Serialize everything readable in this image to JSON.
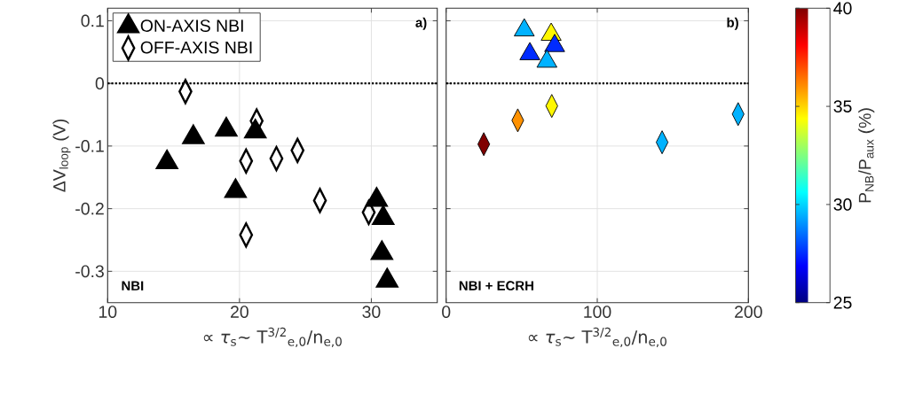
{
  "chart_data": [
    {
      "type": "scatter",
      "xlabel": "∝ *τ*$_{s}$∼ T$^{3/2}$$_{e,0}$/n$_{e,0}$",
      "ylabel": "ΔV$_{loop}$ (V)",
      "xlim": [
        10,
        35
      ],
      "ylim": [
        -0.35,
        0.12
      ],
      "xticks": [
        10,
        20,
        30
      ],
      "yticks": [
        -0.3,
        -0.2,
        -0.1,
        0,
        0.1
      ],
      "grid": true,
      "legend": "top left",
      "annotations": [
        "a)",
        "NBI"
      ],
      "ref_lines": [
        {
          "axis": "y",
          "value": 0,
          "color": "#000000",
          "line_style": "dotted"
        }
      ],
      "series": [
        {
          "name": "ON-AXIS NBI",
          "marker": "triangle",
          "color": "#000000",
          "x": [
            14.5,
            16.5,
            19.0,
            21.2,
            19.7,
            30.4,
            30.9,
            30.8,
            31.2
          ],
          "values": [
            -0.126,
            -0.086,
            -0.074,
            -0.077,
            -0.172,
            -0.186,
            -0.215,
            -0.271,
            -0.315
          ]
        },
        {
          "name": "OFF-AXIS NBI",
          "marker": "diamond",
          "color": "#000000",
          "x": [
            15.9,
            21.3,
            20.5,
            22.8,
            24.4,
            26.1,
            29.8,
            20.5
          ],
          "values": [
            -0.013,
            -0.06,
            -0.124,
            -0.12,
            -0.107,
            -0.187,
            -0.206,
            -0.242
          ]
        }
      ]
    },
    {
      "type": "scatter",
      "xlabel": "∝ *τ*$_{s}$∼ T$^{3/2}$$_{e,0}$/n$_{e,0}$",
      "xlim": [
        0,
        200
      ],
      "ylim": [
        -0.35,
        0.12
      ],
      "xticks": [
        0,
        100,
        200
      ],
      "yticks": [
        -0.3,
        -0.2,
        -0.1,
        0,
        0.1
      ],
      "tick_labels": "x",
      "grid": true,
      "annotations": [
        "b)",
        "NBI + ECRH"
      ],
      "ref_lines": [
        {
          "axis": "y",
          "value": 0,
          "color": "#000000",
          "line_style": "dotted"
        }
      ],
      "clim": [
        25,
        40
      ],
      "cticks": [
        25,
        30,
        35,
        40
      ],
      "clabel": "P$_{NB}$/P$_{aux}$ (%)",
      "series": [
        {
          "marker": "triangle",
          "x": [
            51.7,
            69.5,
            71.8,
            55.4,
            66.7
          ],
          "values": [
            0.085,
            0.078,
            0.06,
            0.047,
            0.035
          ],
          "cvalues": [
            29.5,
            34.5,
            27.5,
            27.5,
            29.5
          ],
          "colors": [
            "#00B3FF",
            "#FFF700",
            "#002BFF",
            "#002BFF",
            "#00B3FF"
          ]
        },
        {
          "marker": "diamond",
          "x": [
            24.9,
            47.4,
            69.9,
            142.9,
            193.2
          ],
          "values": [
            -0.097,
            -0.059,
            -0.036,
            -0.094,
            -0.049
          ],
          "cvalues": [
            40,
            36,
            34.5,
            29.5,
            29.5
          ],
          "colors": [
            "#800000",
            "#FF9100",
            "#FFF700",
            "#00B3FF",
            "#00B3FF"
          ]
        }
      ]
    }
  ]
}
